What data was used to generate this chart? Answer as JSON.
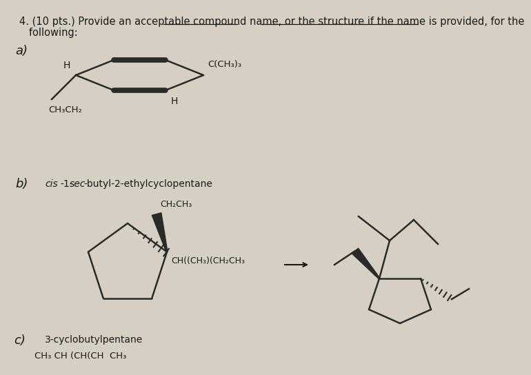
{
  "background_color": "#d6cfc4",
  "title_line1": "4. (10 pts.) Provide an acceptable compound name, or the structure if the name is provided, for the",
  "title_line2": "   following:",
  "title_fontsize": 10.5,
  "label_a": "a)",
  "label_b": "b)",
  "label_c": "c)",
  "text_b_name_parts": [
    {
      "text": "cis",
      "italic": true
    },
    {
      "text": "-1-",
      "italic": false
    },
    {
      "text": "sec",
      "italic": true
    },
    {
      "text": "-butyl-2-ethylcyclopentane",
      "italic": false
    }
  ],
  "text_c_name": "3-cyclobutylpentane",
  "font_color": "#1a1a1a"
}
